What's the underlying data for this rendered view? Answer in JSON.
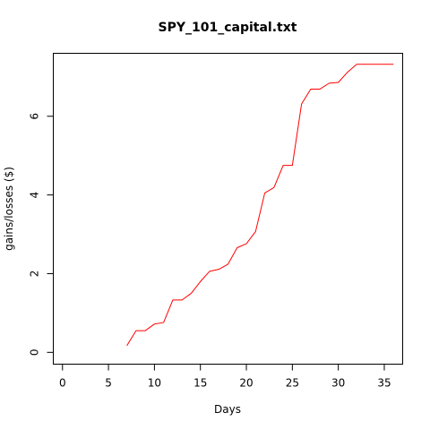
{
  "chart_data": {
    "type": "line",
    "title": "SPY_101_capital.txt",
    "xlabel": "Days",
    "ylabel": "gains/losses ($)",
    "xlim": [
      -1,
      37
    ],
    "ylim": [
      -0.3,
      7.6
    ],
    "xticks": [
      0,
      5,
      10,
      15,
      20,
      25,
      30,
      35
    ],
    "yticks": [
      0,
      2,
      4,
      6
    ],
    "grid": false,
    "legend": "none",
    "series": [
      {
        "color": "#ff0000",
        "x": [
          7,
          8,
          9,
          10,
          11,
          12,
          13,
          14,
          15,
          16,
          17,
          18,
          19,
          20,
          21,
          22,
          23,
          24,
          25,
          26,
          27,
          28,
          29,
          30,
          31,
          32,
          33,
          34,
          35,
          36
        ],
        "y": [
          0.17,
          0.55,
          0.55,
          0.72,
          0.76,
          1.33,
          1.33,
          1.5,
          1.8,
          2.06,
          2.11,
          2.24,
          2.66,
          2.76,
          3.07,
          4.05,
          4.19,
          4.75,
          4.75,
          6.31,
          6.69,
          6.69,
          6.84,
          6.86,
          7.12,
          7.32,
          7.32,
          7.32,
          7.32,
          7.32
        ]
      }
    ]
  }
}
